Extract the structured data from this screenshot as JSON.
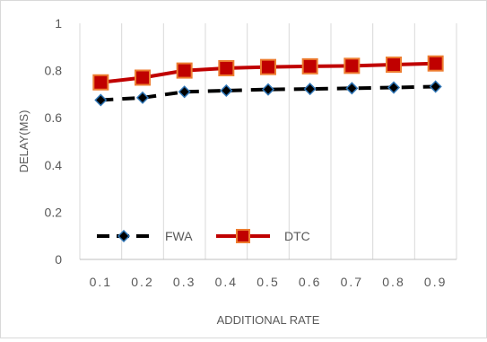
{
  "chart_data": {
    "type": "line",
    "categories": [
      "0.1",
      "0.2",
      "0.3",
      "0.4",
      "0.5",
      "0.6",
      "0.7",
      "0.8",
      "0.9"
    ],
    "series": [
      {
        "name": "FWA",
        "values": [
          0.675,
          0.685,
          0.71,
          0.715,
          0.72,
          0.722,
          0.725,
          0.728,
          0.732
        ],
        "color": "#000000",
        "marker_color": "#2e75b6",
        "marker": "diamond",
        "line_style": "dashed"
      },
      {
        "name": "DTC",
        "values": [
          0.75,
          0.77,
          0.8,
          0.81,
          0.815,
          0.818,
          0.82,
          0.825,
          0.83
        ],
        "color": "#c00000",
        "marker_color": "#c00000",
        "marker_edge": "#ed7d31",
        "marker": "square",
        "line_style": "solid"
      }
    ],
    "xlabel": "ADDITIONAL RATE",
    "ylabel": "DELAY(MS)",
    "ylim": [
      0,
      1
    ],
    "yticks": [
      0,
      0.2,
      0.4,
      0.6,
      0.8,
      1
    ],
    "ytick_labels": [
      "0",
      "0.2",
      "0.4",
      "0.6",
      "0.8",
      "1"
    ],
    "grid": "vertical",
    "legend_position": "inside-bottom-left"
  }
}
